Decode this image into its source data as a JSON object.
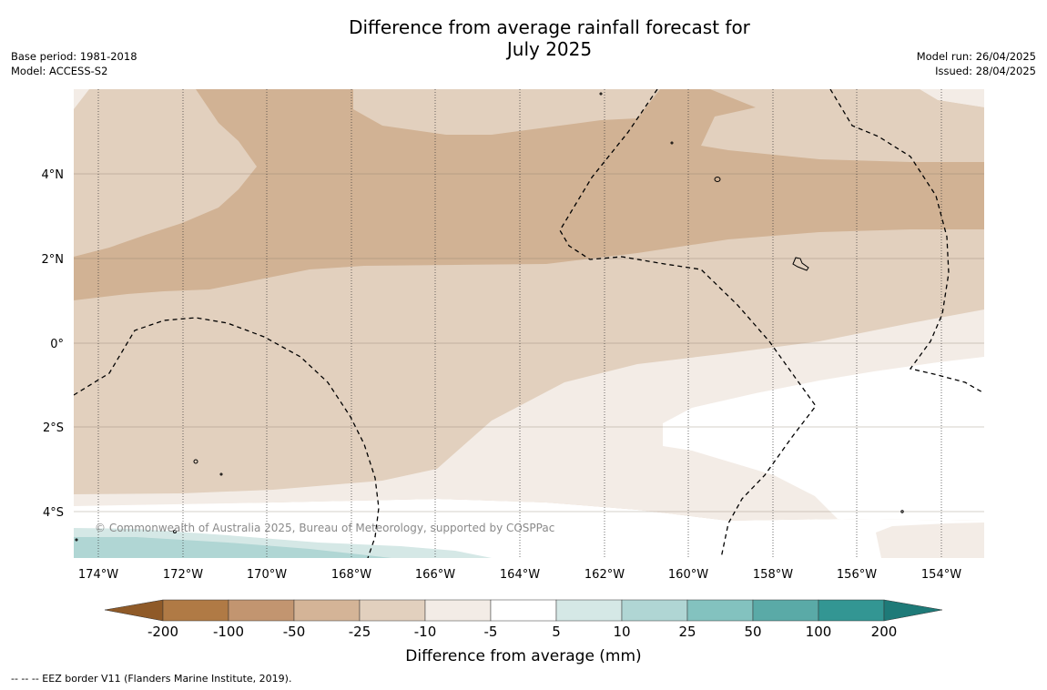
{
  "title_line1": "Difference from average rainfall forecast for",
  "title_line2": "July 2025",
  "base_period": "Base period: 1981-2018",
  "model": "Model: ACCESS-S2",
  "model_run": "Model run: 26/04/2025",
  "issued": "Issued: 28/04/2025",
  "copyright": "© Commonwealth of Australia 2025, Bureau of Meteorology, supported by COSPPac",
  "colorbar": {
    "title": "Difference from average (mm)",
    "ticks": [
      "-200",
      "-100",
      "-50",
      "-25",
      "-10",
      "-5",
      "5",
      "10",
      "25",
      "50",
      "100",
      "200"
    ],
    "colors": [
      "#8f5a28",
      "#b07a45",
      "#c29570",
      "#d4b497",
      "#e2d0be",
      "#f3ece6",
      "#ffffff",
      "#d5e8e6",
      "#b0d6d4",
      "#83c2bf",
      "#5aaaa7",
      "#339693",
      "#1e7a78"
    ]
  },
  "map": {
    "lon_labels": [
      "174°W",
      "172°W",
      "170°W",
      "168°W",
      "166°W",
      "164°W",
      "162°W",
      "160°W",
      "158°W",
      "156°W",
      "154°W"
    ],
    "lat_labels": [
      "4°N",
      "2°N",
      "0°",
      "2°S",
      "4°S"
    ]
  },
  "footnote": "-- -- -- EEZ border V11 (Flanders Marine Institute, 2019)."
}
